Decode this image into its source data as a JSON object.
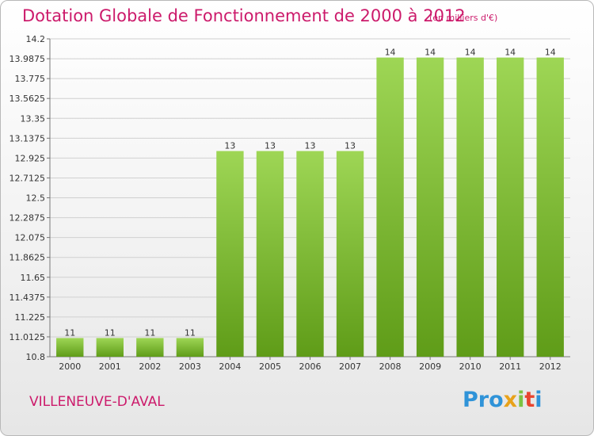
{
  "header": {
    "title": "Dotation Globale de Fonctionnement de 2000 à 2012",
    "unit": "(en milliers d'€)"
  },
  "footer": {
    "commune": "VILLENEUVE-D'AVAL",
    "logo_letters": [
      "Pro",
      "x",
      "i",
      "t",
      "i"
    ]
  },
  "colors": {
    "title": "#cc1a6b",
    "bar_top": "#9ed655",
    "bar_bottom": "#5f9c18",
    "grid": "#d0d0d0"
  },
  "chart_data": {
    "type": "bar",
    "title": "Dotation Globale de Fonctionnement de 2000 à 2012",
    "xlabel": "",
    "ylabel": "",
    "categories": [
      "2000",
      "2001",
      "2002",
      "2003",
      "2004",
      "2005",
      "2006",
      "2007",
      "2008",
      "2009",
      "2010",
      "2011",
      "2012"
    ],
    "values": [
      11,
      11,
      11,
      11,
      13,
      13,
      13,
      13,
      14,
      14,
      14,
      14,
      14
    ],
    "data_labels": [
      "11",
      "11",
      "11",
      "11",
      "13",
      "13",
      "13",
      "13",
      "14",
      "14",
      "14",
      "14",
      "14"
    ],
    "ylim": [
      10.8,
      14.2
    ],
    "yticks": [
      "10.8",
      "11.0125",
      "11.225",
      "11.4375",
      "11.65",
      "11.8625",
      "12.075",
      "12.2875",
      "12.5",
      "12.7125",
      "12.925",
      "13.1375",
      "13.35",
      "13.5625",
      "13.775",
      "13.9875",
      "14.2"
    ],
    "grid": true,
    "legend": "none"
  }
}
